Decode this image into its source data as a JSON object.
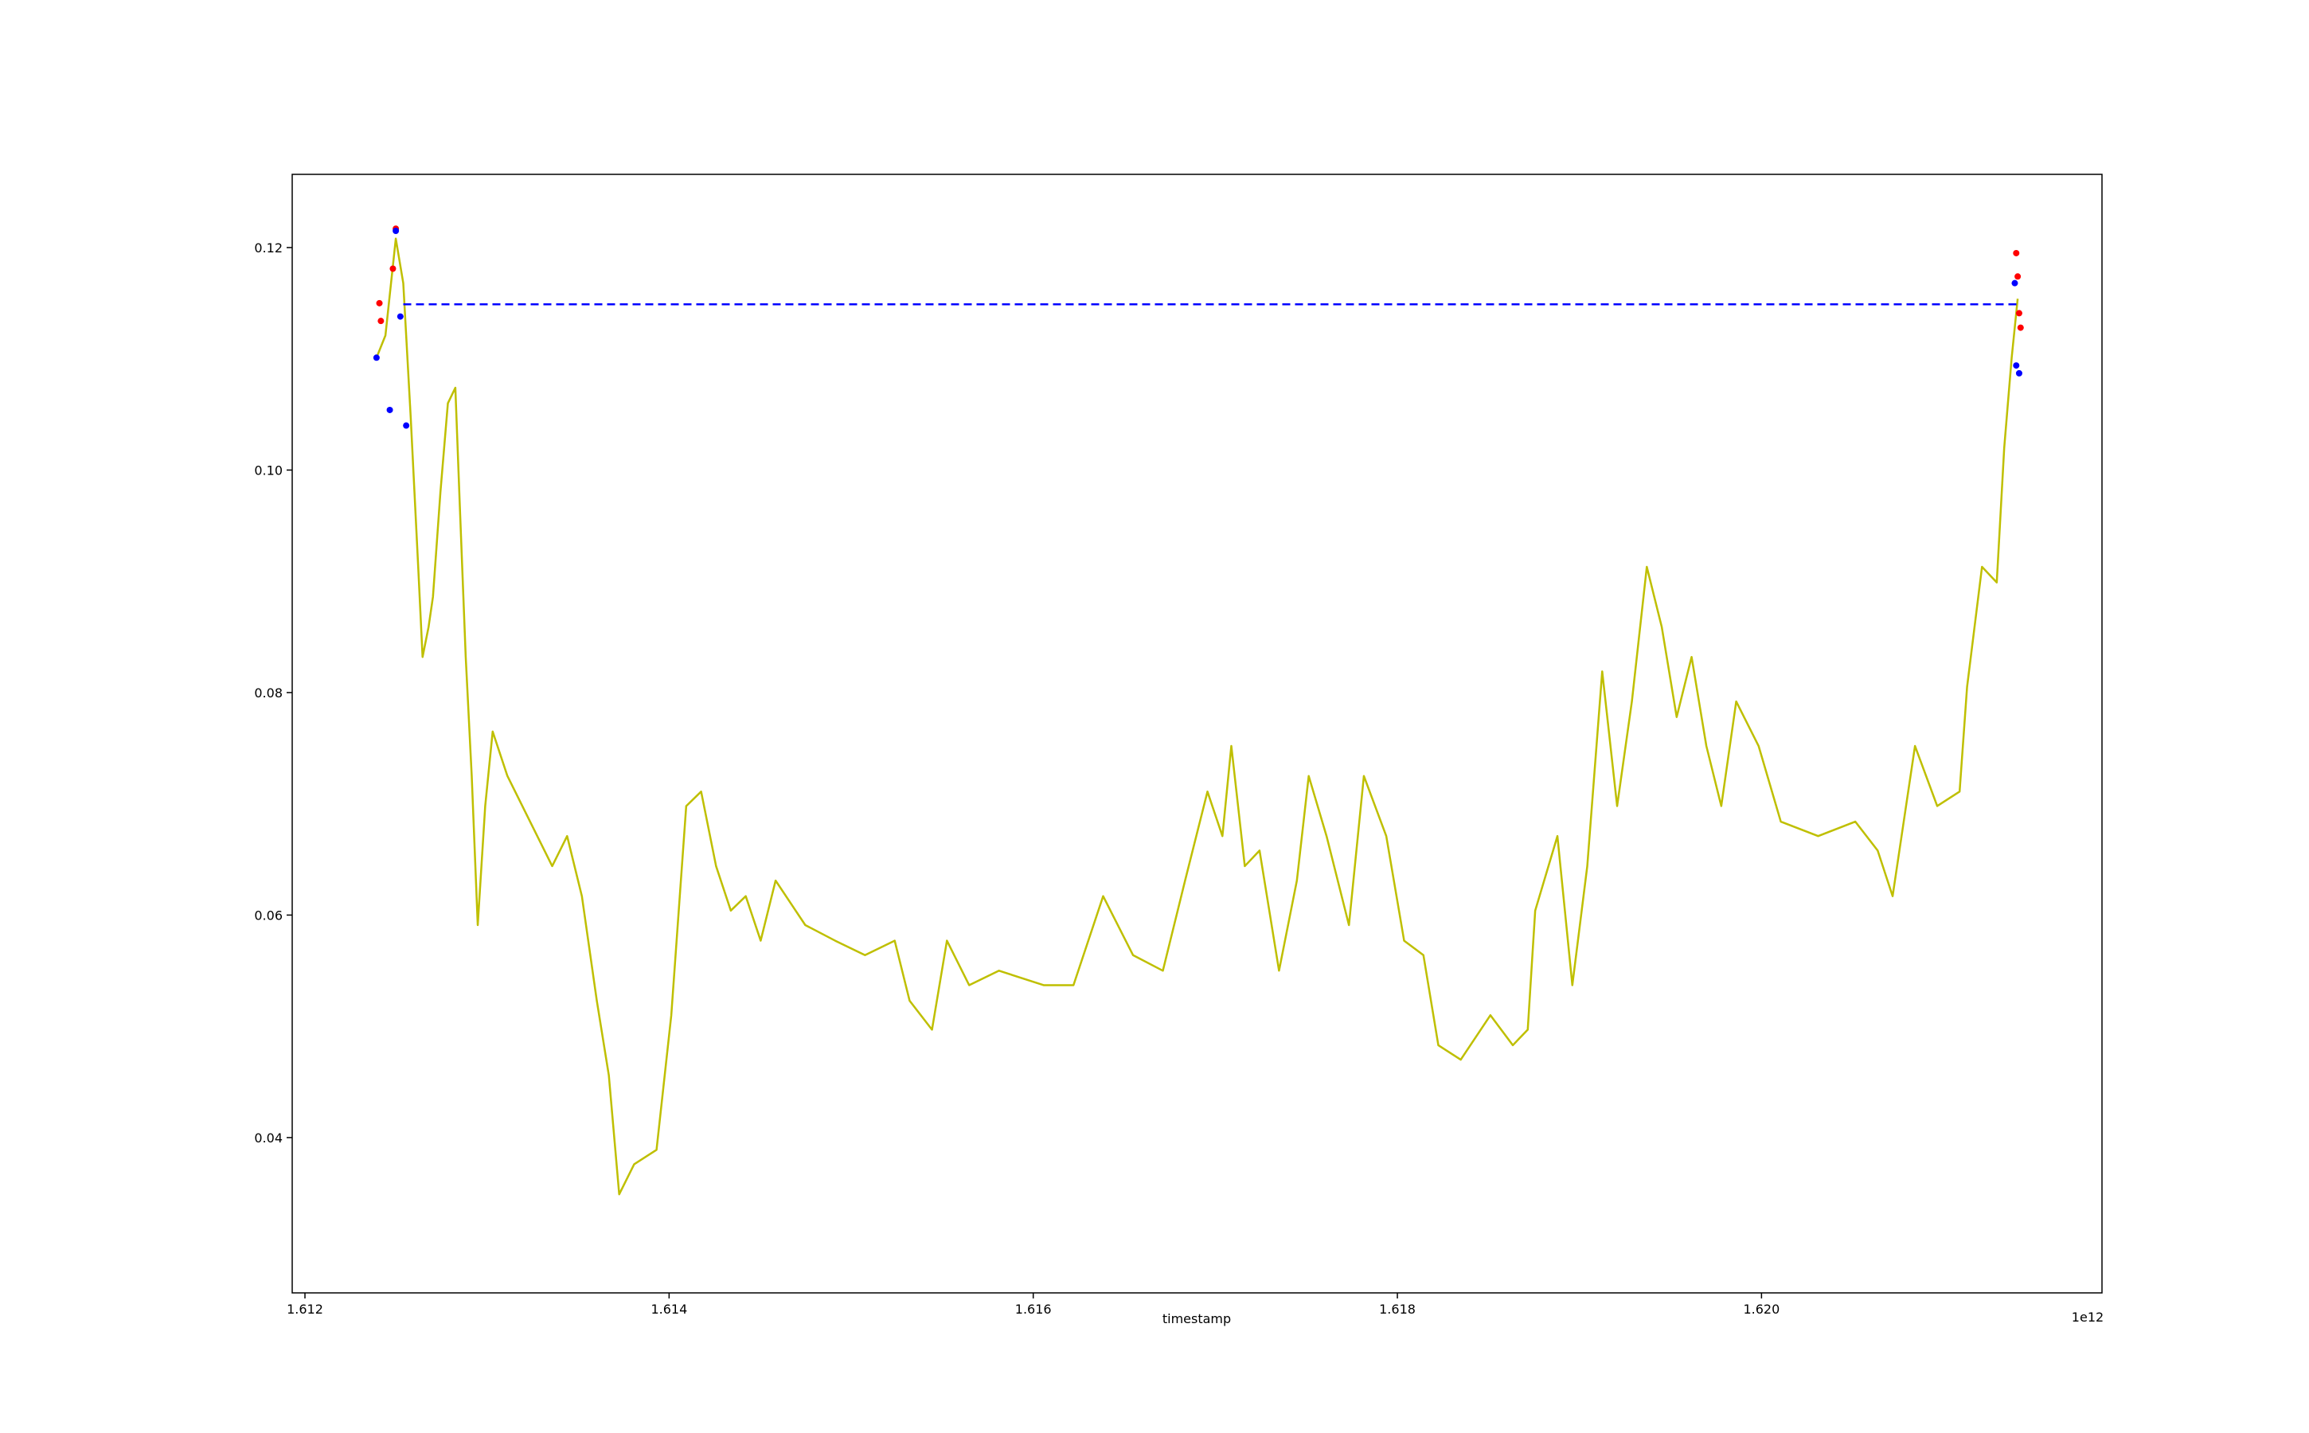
{
  "chart_data": {
    "type": "line",
    "x_label": "timestamp",
    "x_offset_label": "1e12",
    "xlim": [
      1.61193,
      1.62187
    ],
    "ylim": [
      0.02604,
      0.12658
    ],
    "xticks": [
      1.612,
      1.614,
      1.616,
      1.618,
      {
        "value": 1.62,
        "label": "1.620"
      }
    ],
    "yticks": [
      0.04,
      0.06,
      0.08,
      {
        "value": 0.1,
        "label": "0.10"
      },
      0.12
    ],
    "grid": false,
    "series": [
      {
        "type": "line",
        "color": "#bfbf00",
        "x": [
          1.612393,
          1.612442,
          1.612499,
          1.61254,
          1.612581,
          1.612622,
          1.612646,
          1.612679,
          1.612703,
          1.612744,
          1.612785,
          1.612826,
          1.612851,
          1.612883,
          1.612916,
          1.612949,
          1.61299,
          1.613031,
          1.613112,
          1.613194,
          1.613276,
          1.613358,
          1.61344,
          1.613521,
          1.613603,
          1.613669,
          1.613726,
          1.613808,
          1.613931,
          1.614012,
          1.614094,
          1.614176,
          1.614258,
          1.614339,
          1.614421,
          1.614503,
          1.614585,
          1.614748,
          1.614912,
          1.615076,
          1.615239,
          1.615321,
          1.615444,
          1.615526,
          1.615648,
          1.615812,
          1.616057,
          1.616221,
          1.616384,
          1.616548,
          1.616712,
          1.616834,
          1.616957,
          1.617039,
          1.617088,
          1.617162,
          1.617243,
          1.61735,
          1.617448,
          1.617513,
          1.617611,
          1.617734,
          1.617816,
          1.617939,
          1.618037,
          1.618143,
          1.618225,
          1.618348,
          1.618511,
          1.618634,
          1.618716,
          1.618757,
          1.618879,
          1.618961,
          1.619043,
          1.619125,
          1.619207,
          1.619288,
          1.61937,
          1.619452,
          1.619534,
          1.619616,
          1.619697,
          1.619779,
          1.619861,
          1.619984,
          1.620106,
          1.620311,
          1.620515,
          1.620638,
          1.62072,
          1.620843,
          1.620965,
          1.621088,
          1.621129,
          1.621211,
          1.621292,
          1.621333,
          1.621374,
          1.621407
        ],
        "values": [
          0.1101,
          0.1121,
          0.1208,
          0.1168,
          0.1047,
          0.0913,
          0.0832,
          0.0859,
          0.0886,
          0.098,
          0.106,
          0.1074,
          0.0966,
          0.0832,
          0.0725,
          0.0591,
          0.0698,
          0.0765,
          0.0725,
          0.0698,
          0.0671,
          0.0644,
          0.0671,
          0.0617,
          0.0523,
          0.0456,
          0.0349,
          0.0376,
          0.0389,
          0.051,
          0.0698,
          0.0711,
          0.0644,
          0.0604,
          0.0617,
          0.0577,
          0.0631,
          0.0591,
          0.0577,
          0.0564,
          0.0577,
          0.0523,
          0.0497,
          0.0577,
          0.0537,
          0.055,
          0.0537,
          0.0537,
          0.0617,
          0.0564,
          0.055,
          0.0631,
          0.0711,
          0.0671,
          0.0752,
          0.0644,
          0.0658,
          0.055,
          0.0631,
          0.0725,
          0.0671,
          0.0591,
          0.0725,
          0.0671,
          0.0577,
          0.0564,
          0.0483,
          0.047,
          0.051,
          0.0483,
          0.0497,
          0.0604,
          0.0671,
          0.0537,
          0.0644,
          0.0819,
          0.0698,
          0.0792,
          0.0913,
          0.0859,
          0.0778,
          0.0832,
          0.0752,
          0.0698,
          0.0792,
          0.0752,
          0.0684,
          0.0671,
          0.0684,
          0.0658,
          0.0617,
          0.0752,
          0.0698,
          0.0711,
          0.0805,
          0.0913,
          0.0899,
          0.102,
          0.1101,
          0.1154
        ]
      },
      {
        "type": "line",
        "color": "#0000ff",
        "style": "dashed",
        "x": [
          1.61254,
          1.62141
        ],
        "values": [
          0.1149,
          0.1149
        ]
      },
      {
        "type": "scatter",
        "color": "#ff0000",
        "x": [
          1.612409,
          1.612417,
          1.612483,
          1.612499,
          1.621399,
          1.621407,
          1.621415,
          1.621423
        ],
        "values": [
          0.115,
          0.1134,
          0.1181,
          0.1217,
          0.1195,
          0.1174,
          0.1141,
          0.1128
        ]
      },
      {
        "type": "scatter",
        "color": "#0000ff",
        "x": [
          1.612393,
          1.612466,
          1.612499,
          1.612524,
          1.612556,
          1.621391,
          1.621399,
          1.621415
        ],
        "values": [
          0.1101,
          0.1054,
          0.1215,
          0.1138,
          0.104,
          0.1168,
          0.1094,
          0.1087
        ]
      }
    ]
  }
}
